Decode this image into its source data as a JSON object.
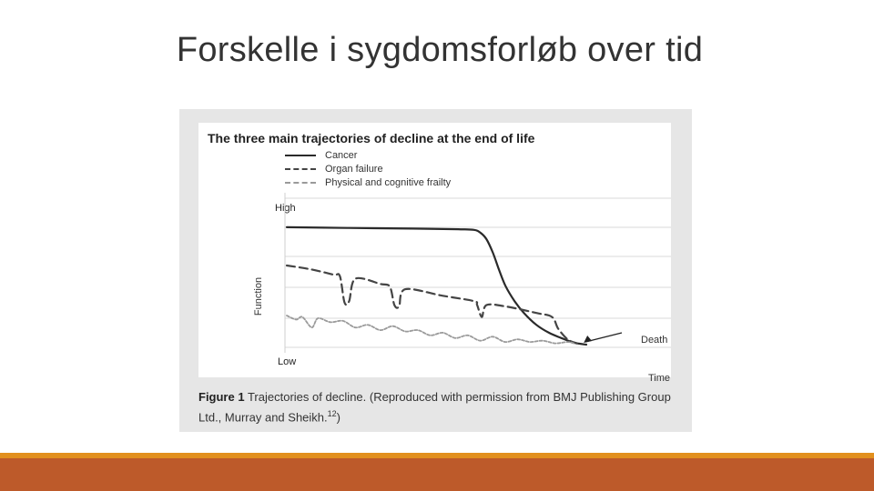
{
  "slide": {
    "title": "Forskelle i sygdomsforløb over tid"
  },
  "figure": {
    "caption_figure": "Figure 1",
    "caption_text": "Trajectories of decline. (Reproduced with permission from BMJ Publishing Group Ltd., Murray and Sheikh.",
    "caption_ref": "12",
    "caption_close": ")"
  },
  "chart_data": {
    "type": "line",
    "title": "The three main trajectories of decline at the end of life",
    "xlabel": "Time",
    "ylabel": "Function",
    "y_ticks": [
      "High",
      "Low"
    ],
    "ylim": [
      0,
      100
    ],
    "xlim": [
      0,
      100
    ],
    "grid": true,
    "legend_position": "top-left",
    "annotation": "Death",
    "series": [
      {
        "name": "Cancer",
        "style": "solid",
        "color": "#2a2a2a",
        "x": [
          0,
          20,
          40,
          55,
          60,
          62,
          64,
          66,
          68,
          70,
          73,
          76,
          80,
          84,
          88,
          92,
          96
        ],
        "y": [
          89,
          88.5,
          88,
          87.5,
          87,
          85,
          80,
          70,
          57,
          45,
          33,
          24,
          15,
          9,
          5,
          1.5,
          0
        ]
      },
      {
        "name": "Organ failure",
        "style": "dashed",
        "color": "#444444",
        "x": [
          0,
          8,
          15,
          17,
          18.5,
          20,
          22,
          30,
          33,
          34.5,
          36,
          38,
          50,
          60,
          61,
          62.5,
          64,
          70,
          80,
          85,
          87,
          90,
          93
        ],
        "y": [
          60,
          57,
          53,
          52,
          32,
          33,
          50,
          46,
          44,
          30,
          29,
          42,
          37,
          33,
          30,
          21,
          30,
          29,
          24,
          21,
          12,
          4,
          1
        ]
      },
      {
        "name": "Physical and cognitive frailty",
        "style": "dotted",
        "color": "#9a9a9a",
        "x": [
          0,
          3,
          5,
          8,
          10,
          14,
          18,
          22,
          26,
          30,
          34,
          38,
          42,
          46,
          50,
          54,
          58,
          62,
          66,
          70,
          74,
          78,
          82,
          86,
          90,
          92
        ],
        "y": [
          22,
          19,
          21,
          13,
          20,
          17,
          18,
          13,
          15,
          11,
          14,
          10,
          11,
          7,
          9,
          5,
          7,
          3,
          6,
          2,
          4,
          2,
          3,
          1,
          2,
          1
        ]
      }
    ]
  },
  "colors": {
    "footer_accent": "#e2901e",
    "footer_bar": "#bd5a2a",
    "frame_gray": "#e6e6e6"
  }
}
